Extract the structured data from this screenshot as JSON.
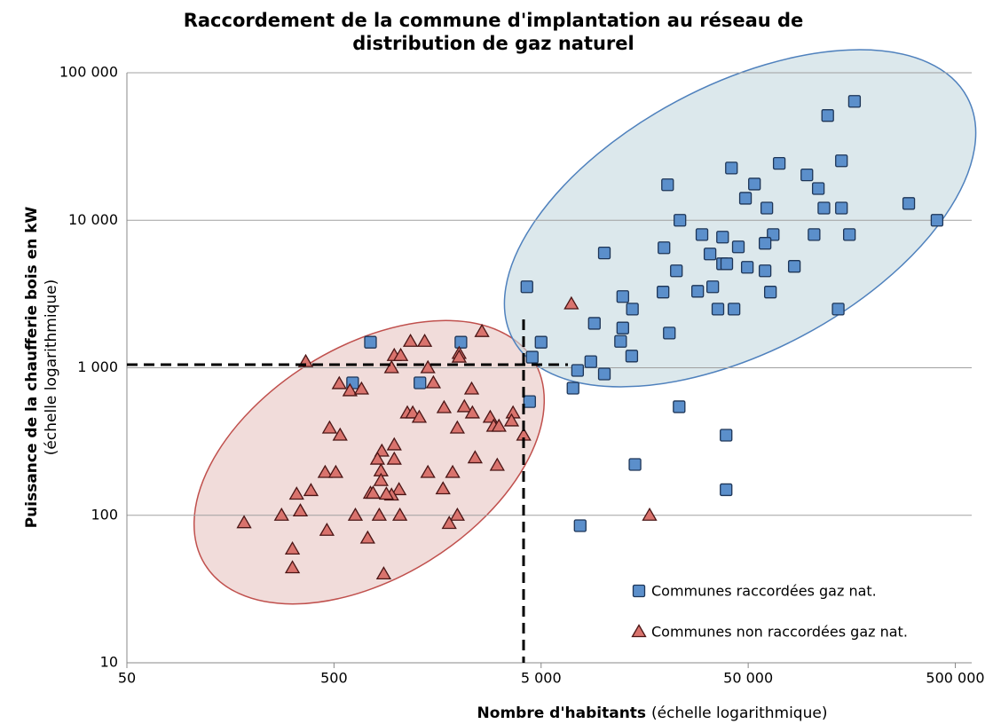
{
  "chart_data": {
    "type": "scatter",
    "title": [
      "Raccordement de la commune d'implantation au réseau de",
      "distribution de gaz naturel"
    ],
    "xlabel": "Nombre d'habitants",
    "xlabel_note": "(échelle logarithmique)",
    "ylabel": "Puissance de la chaufferie bois en kW",
    "ylabel_note": "(échelle logarithmique)",
    "xscale": "log",
    "yscale": "log",
    "xlim": [
      50,
      600000
    ],
    "ylim": [
      10,
      100000
    ],
    "xticks": [
      50,
      500,
      {
        "value": 5000,
        "label": "5 000"
      },
      {
        "value": 50000,
        "label": "50 000"
      },
      {
        "value": 500000,
        "label": "500 000"
      }
    ],
    "yticks": [
      10,
      100,
      {
        "value": 1000,
        "label": "1 000"
      },
      {
        "value": 10000,
        "label": "10 000"
      },
      {
        "value": 100000,
        "label": "100 000"
      }
    ],
    "grid": true,
    "legend": "lower right",
    "series": [
      {
        "name": "Communes raccordées gaz nat.",
        "marker": "square",
        "color": "#5b8fcb",
        "x": [
          163000,
          121000,
          141000,
          41500,
          70600,
          96000,
          109000,
          53600,
          20400,
          48500,
          116000,
          141000,
          61500,
          298000,
          408000,
          23400,
          104000,
          154000,
          66000,
          60300,
          29900,
          37600,
          19600,
          32700,
          44800,
          10100,
          37600,
          39400,
          49500,
          83500,
          60300,
          22500,
          28500,
          33700,
          19400,
          64000,
          12400,
          4270,
          35700,
          42700,
          136000,
          13800,
          9040,
          12400,
          20800,
          12100,
          5000,
          750,
          2050,
          13700,
          4530,
          8690,
          7500,
          10100,
          1300,
          615,
          7130,
          4400,
          23200,
          39100,
          14200,
          39100,
          7720
        ],
        "values": [
          64000,
          51300,
          25300,
          22600,
          24300,
          20300,
          16400,
          17600,
          17400,
          14100,
          12100,
          12100,
          12100,
          13000,
          10000,
          10000,
          8000,
          8000,
          8000,
          6980,
          8000,
          7690,
          6510,
          5910,
          6600,
          6000,
          5070,
          5070,
          4800,
          4870,
          4540,
          4540,
          3300,
          3540,
          3260,
          3260,
          3040,
          3540,
          2500,
          2500,
          2500,
          2500,
          2000,
          1860,
          1720,
          1510,
          1490,
          1490,
          1490,
          1200,
          1180,
          1100,
          959,
          908,
          790,
          790,
          727,
          590,
          544,
          349,
          221,
          149,
          85
        ]
      },
      {
        "name": "Communes non raccordées gaz nat.",
        "marker": "triangle",
        "color": "#d9736d",
        "x": [
          2590,
          7000,
          1170,
          1370,
          977,
          1050,
          2010,
          2010,
          365,
          1420,
          948,
          1510,
          530,
          597,
          679,
          2310,
          1700,
          2130,
          3660,
          2840,
          1130,
          1200,
          1290,
          2330,
          3600,
          1970,
          2950,
          3130,
          476,
          535,
          977,
          851,
          811,
          977,
          2400,
          3070,
          843,
          1420,
          1870,
          453,
          510,
          4120,
          843,
          750,
          772,
          1030,
          948,
          895,
          387,
          330,
          1680,
          344,
          634,
          827,
          1040,
          1970,
          279,
          1800,
          184,
          462,
          727,
          315,
          315,
          869,
          16700
        ],
        "values": [
          1760,
          2710,
          1510,
          1510,
          1210,
          1210,
          1250,
          1180,
          1100,
          1000,
          1000,
          790,
          780,
          698,
          717,
          717,
          536,
          544,
          494,
          461,
          494,
          494,
          461,
          494,
          436,
          390,
          401,
          401,
          390,
          349,
          300,
          272,
          240,
          240,
          245,
          218,
          200,
          195,
          195,
          195,
          195,
          349,
          172,
          141,
          141,
          149,
          137,
          139,
          147,
          139,
          151,
          107,
          100,
          100,
          100,
          100,
          100,
          88,
          89,
          79,
          70,
          59,
          44,
          40,
          100
        ]
      }
    ]
  }
}
